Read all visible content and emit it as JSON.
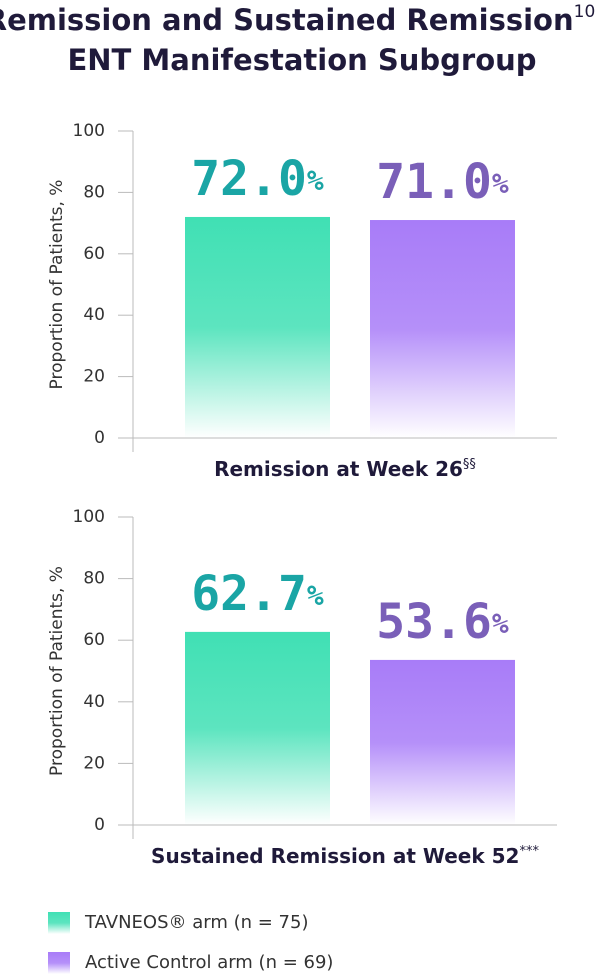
{
  "title": {
    "line1": "Remission and Sustained Remission",
    "superscript": "10",
    "line2": "ENT Manifestation Subgroup"
  },
  "chart_data": [
    {
      "type": "bar",
      "xlabel": "Remission at Week 26",
      "xlabel_note": "§§",
      "ylabel": "Proportion of Patients, %",
      "ylim": [
        0,
        100
      ],
      "yticks": [
        0,
        20,
        40,
        60,
        80,
        100
      ],
      "series": [
        {
          "color": "#40e0b4",
          "label_color": "#1aa5a5",
          "values": [
            72.0
          ],
          "value_labels": [
            "72.0%"
          ]
        },
        {
          "color": "#a87cf8",
          "label_color": "#7a5fb8",
          "values": [
            71.0
          ],
          "value_labels": [
            "71.0%"
          ]
        }
      ]
    },
    {
      "type": "bar",
      "xlabel": "Sustained Remission at Week 52",
      "xlabel_note": "***",
      "ylabel": "Proportion of Patients, %",
      "ylim": [
        0,
        100
      ],
      "yticks": [
        0,
        20,
        40,
        60,
        80,
        100
      ],
      "series": [
        {
          "color": "#40e0b4",
          "label_color": "#1aa5a5",
          "values": [
            62.7
          ],
          "value_labels": [
            "62.7%"
          ]
        },
        {
          "color": "#a87cf8",
          "label_color": "#7a5fb8",
          "values": [
            53.6
          ],
          "value_labels": [
            "53.6%"
          ]
        }
      ]
    }
  ],
  "legend": [
    {
      "name": "TAVNEOS® arm (n = 75)",
      "color": "#40e0b4"
    },
    {
      "name": "Active Control arm (n = 69)",
      "color": "#a87cf8"
    }
  ]
}
